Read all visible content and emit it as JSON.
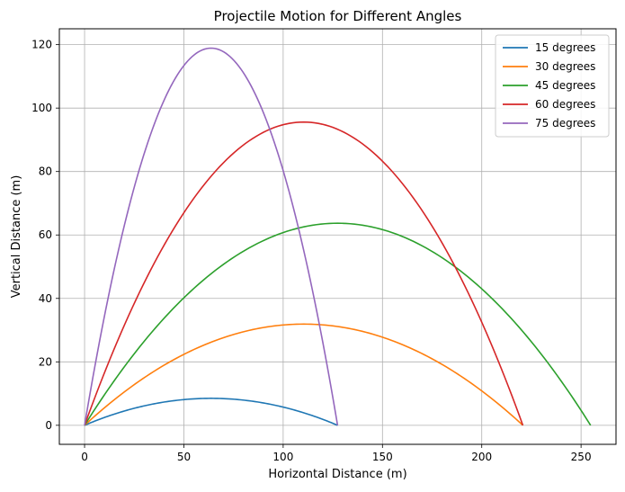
{
  "chart_data": {
    "type": "line",
    "title": "Projectile Motion for Different Angles",
    "xlabel": "Horizontal Distance (m)",
    "ylabel": "Vertical Distance (m)",
    "xlim": [
      -12.7,
      267.6
    ],
    "ylim": [
      -6.0,
      125.0
    ],
    "xticks": [
      0,
      50,
      100,
      150,
      200,
      250
    ],
    "yticks": [
      0,
      20,
      40,
      60,
      80,
      100,
      120
    ],
    "grid": true,
    "legend_position": "top-right",
    "series": [
      {
        "name": "15 degrees",
        "color": "#1f77b4",
        "range_m": 127.4,
        "max_height_m": 8.5
      },
      {
        "name": "30 degrees",
        "color": "#ff7f0e",
        "range_m": 220.7,
        "max_height_m": 31.9
      },
      {
        "name": "45 degrees",
        "color": "#2ca02c",
        "range_m": 254.8,
        "max_height_m": 63.7
      },
      {
        "name": "60 degrees",
        "color": "#d62728",
        "range_m": 220.7,
        "max_height_m": 95.6
      },
      {
        "name": "75 degrees",
        "color": "#9467bd",
        "range_m": 127.4,
        "max_height_m": 118.9
      }
    ]
  }
}
